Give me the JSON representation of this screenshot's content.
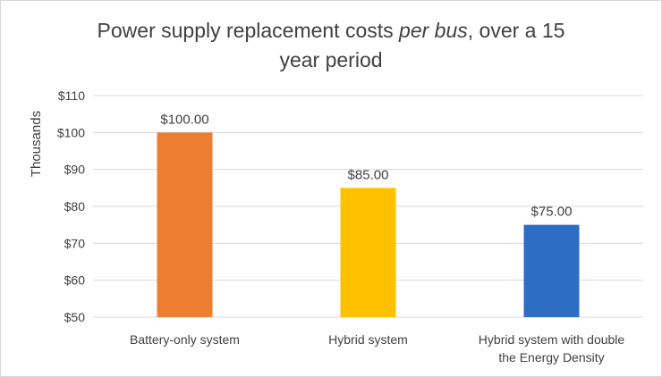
{
  "chart_data": {
    "type": "bar",
    "title": {
      "line1_before": "Power supply replacement costs ",
      "line1_italic": "per bus",
      "line1_after": ", over a 15",
      "line2": "year period"
    },
    "ylabel": "Thousands",
    "xlabel": "",
    "ylim": [
      50,
      110
    ],
    "yticks": [
      50,
      60,
      70,
      80,
      90,
      100,
      110
    ],
    "ytick_labels": [
      "$50",
      "$60",
      "$70",
      "$80",
      "$90",
      "$100",
      "$110"
    ],
    "grid": true,
    "legend": "none",
    "categories": [
      [
        "Battery-only system"
      ],
      [
        "Hybrid system"
      ],
      [
        "Hybrid system with double",
        "the Energy Density"
      ]
    ],
    "values": [
      100,
      85,
      75
    ],
    "data_labels": [
      "$100.00",
      "$85.00",
      "$75.00"
    ],
    "colors": [
      "#ed7d31",
      "#ffc000",
      "#2e6dc4"
    ]
  }
}
